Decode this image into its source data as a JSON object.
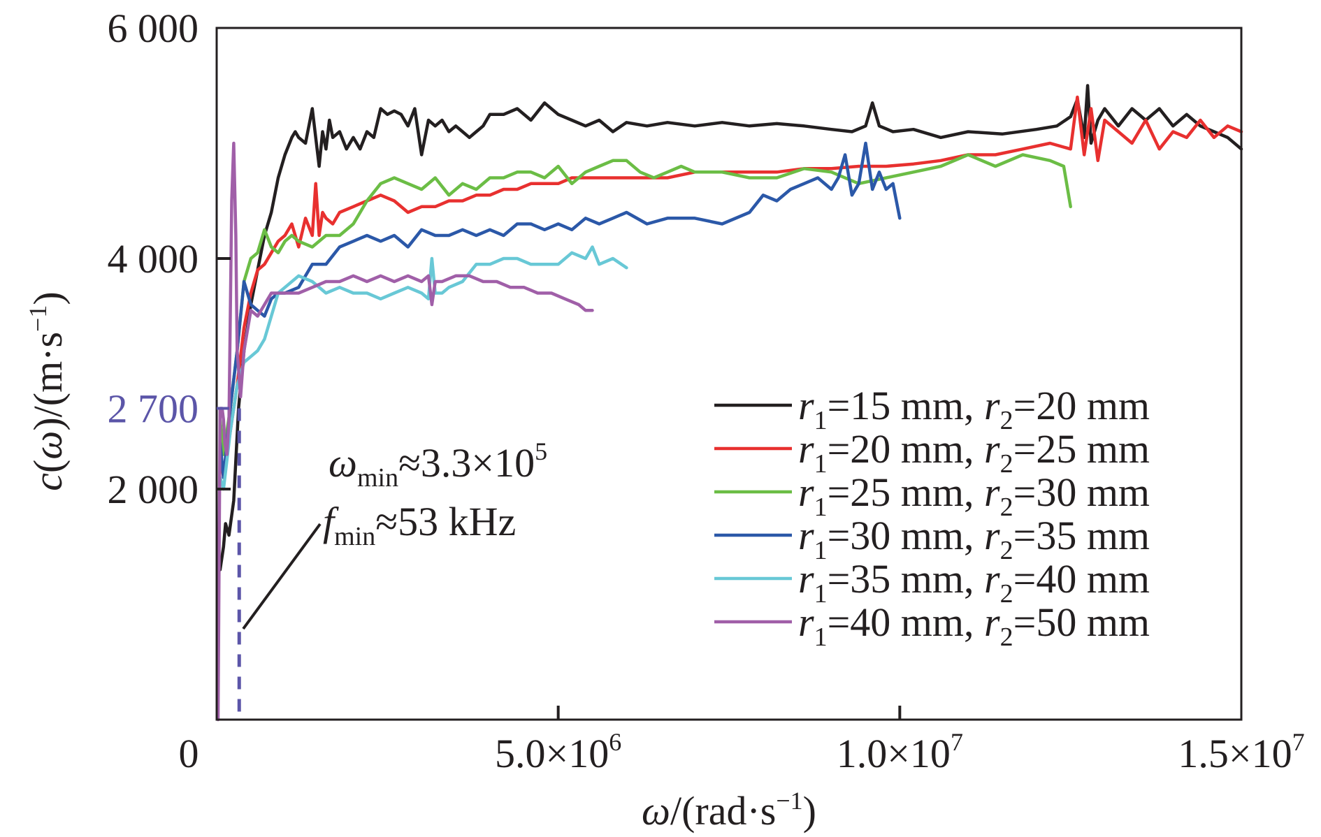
{
  "chart_data": {
    "type": "line",
    "title": "",
    "xlabel": "ω/(rad·s⁻¹)",
    "xlabel_parts": {
      "var": "ω",
      "unit": "/(rad·s",
      "sup": "−1",
      "close": ")"
    },
    "ylabel": "c(ω)/(m·s⁻¹)",
    "ylabel_parts": {
      "func": "c",
      "open": "(",
      "var": "ω",
      "unit": ")/(m·s",
      "sup": "−1",
      "close": ")"
    },
    "xlim": [
      0,
      15000000
    ],
    "ylim": [
      0,
      6000
    ],
    "grid": false,
    "legend_position": "center-right",
    "x_ticks": [
      {
        "value": 0,
        "label": "0"
      },
      {
        "value": 5000000,
        "label_mant": "5.0×10",
        "label_exp": "6"
      },
      {
        "value": 10000000,
        "label_mant": "1.0×10",
        "label_exp": "7"
      },
      {
        "value": 15000000,
        "label_mant": "1.5×10",
        "label_exp": "7"
      }
    ],
    "y_ticks": [
      {
        "value": 2000,
        "label": "2 000"
      },
      {
        "value": 4000,
        "label": "4 000"
      },
      {
        "value": 6000,
        "label": "6 000"
      }
    ],
    "highlight_tick": {
      "value": 2700,
      "label": "2 700",
      "color": "#5b55a8"
    },
    "vline": {
      "x": 330000,
      "color": "#5b55a8",
      "style": "dashed"
    },
    "annotations": {
      "omega": {
        "sym": "ω",
        "sub": "min",
        "text": "≈3.3×10",
        "sup": "5"
      },
      "freq": {
        "sym": "f",
        "sub": "min",
        "text": "≈53 kHz"
      }
    },
    "series": [
      {
        "name": "r1=15 mm, r2=20 mm",
        "label": {
          "a": "r",
          "a_sub": "1",
          "a_val": "=15 mm, ",
          "b": "r",
          "b_sub": "2",
          "b_val": "=20 mm"
        },
        "color": "#231f20",
        "x_unit": 1000000,
        "x": [
          0.05,
          0.1,
          0.13,
          0.18,
          0.25,
          0.32,
          0.4,
          0.5,
          0.6,
          0.7,
          0.8,
          0.9,
          1.0,
          1.1,
          1.15,
          1.2,
          1.3,
          1.4,
          1.5,
          1.55,
          1.6,
          1.65,
          1.7,
          1.8,
          1.9,
          2.0,
          2.1,
          2.2,
          2.3,
          2.4,
          2.5,
          2.6,
          2.7,
          2.8,
          2.9,
          3.0,
          3.1,
          3.2,
          3.3,
          3.4,
          3.5,
          3.6,
          3.7,
          3.8,
          3.9,
          4.0,
          4.2,
          4.4,
          4.6,
          4.8,
          5.0,
          5.2,
          5.4,
          5.6,
          5.8,
          6.0,
          6.3,
          6.6,
          7.0,
          7.4,
          7.8,
          8.2,
          8.6,
          9.0,
          9.3,
          9.5,
          9.6,
          9.7,
          9.9,
          10.2,
          10.6,
          11.0,
          11.5,
          12.0,
          12.3,
          12.5,
          12.6,
          12.7,
          12.75,
          12.8,
          12.9,
          13.0,
          13.2,
          13.4,
          13.6,
          13.8,
          14.0,
          14.2,
          14.4,
          14.6,
          14.8,
          15.0
        ],
        "y": [
          1300,
          1500,
          1700,
          1600,
          1900,
          2700,
          3200,
          3600,
          3900,
          4200,
          4400,
          4700,
          4900,
          5050,
          5100,
          5050,
          5000,
          5300,
          4800,
          5100,
          4950,
          5200,
          5050,
          5100,
          4950,
          5050,
          4950,
          5100,
          5050,
          5300,
          5250,
          5280,
          5250,
          5150,
          5300,
          4900,
          5200,
          5150,
          5200,
          5100,
          5150,
          5100,
          5050,
          5100,
          5150,
          5250,
          5250,
          5300,
          5200,
          5350,
          5250,
          5200,
          5150,
          5200,
          5100,
          5180,
          5150,
          5180,
          5150,
          5180,
          5150,
          5170,
          5150,
          5120,
          5100,
          5150,
          5350,
          5150,
          5100,
          5120,
          5050,
          5100,
          5080,
          5120,
          5150,
          5230,
          5380,
          5050,
          5500,
          5000,
          5200,
          5300,
          5150,
          5300,
          5200,
          5300,
          5150,
          5250,
          5150,
          5100,
          5050,
          4950
        ]
      },
      {
        "name": "r1=20 mm, r2=25 mm",
        "label": {
          "a": "r",
          "a_sub": "1",
          "a_val": "=20 mm, ",
          "b": "r",
          "b_sub": "2",
          "b_val": "=25 mm"
        },
        "color": "#e8302f",
        "x_unit": 1000000,
        "x": [
          0.05,
          0.1,
          0.2,
          0.3,
          0.4,
          0.5,
          0.6,
          0.7,
          0.8,
          0.9,
          1.0,
          1.1,
          1.2,
          1.3,
          1.4,
          1.45,
          1.5,
          1.55,
          1.6,
          1.7,
          1.8,
          2.0,
          2.2,
          2.4,
          2.6,
          2.8,
          3.0,
          3.2,
          3.4,
          3.6,
          3.8,
          4.0,
          4.2,
          4.4,
          4.6,
          4.8,
          5.0,
          5.2,
          5.4,
          5.6,
          5.8,
          6.0,
          6.3,
          6.6,
          7.0,
          7.4,
          7.8,
          8.2,
          8.6,
          9.0,
          9.4,
          9.8,
          10.2,
          10.6,
          11.0,
          11.4,
          11.8,
          12.2,
          12.5,
          12.6,
          12.7,
          12.8,
          12.9,
          13.0,
          13.2,
          13.4,
          13.6,
          13.8,
          14.0,
          14.2,
          14.4,
          14.6,
          14.8,
          15.0
        ],
        "y": [
          2300,
          2100,
          2500,
          2900,
          3400,
          3700,
          3900,
          3950,
          4050,
          4150,
          4200,
          4300,
          4100,
          4350,
          4200,
          4650,
          4200,
          4400,
          4350,
          4300,
          4400,
          4450,
          4500,
          4550,
          4500,
          4400,
          4450,
          4450,
          4500,
          4500,
          4550,
          4550,
          4600,
          4600,
          4650,
          4650,
          4650,
          4700,
          4700,
          4700,
          4700,
          4700,
          4700,
          4700,
          4750,
          4750,
          4750,
          4750,
          4780,
          4780,
          4800,
          4800,
          4820,
          4850,
          4900,
          4900,
          4950,
          5000,
          4950,
          5400,
          4900,
          5300,
          4850,
          5200,
          5100,
          5000,
          5200,
          4950,
          5100,
          5050,
          5200,
          5050,
          5150,
          5100
        ]
      },
      {
        "name": "r1=25 mm, r2=30 mm",
        "label": {
          "a": "r",
          "a_sub": "1",
          "a_val": "=25 mm, ",
          "b": "r",
          "b_sub": "2",
          "b_val": "=30 mm"
        },
        "color": "#6bbd45",
        "x_unit": 1000000,
        "x": [
          0.05,
          0.1,
          0.2,
          0.3,
          0.4,
          0.5,
          0.6,
          0.7,
          0.8,
          0.9,
          1.0,
          1.1,
          1.2,
          1.4,
          1.6,
          1.8,
          2.0,
          2.2,
          2.4,
          2.6,
          2.8,
          3.0,
          3.2,
          3.4,
          3.6,
          3.8,
          4.0,
          4.2,
          4.4,
          4.6,
          4.8,
          5.0,
          5.2,
          5.4,
          5.6,
          5.8,
          6.0,
          6.2,
          6.4,
          6.6,
          6.8,
          7.0,
          7.4,
          7.8,
          8.2,
          8.6,
          9.0,
          9.4,
          9.8,
          10.2,
          10.6,
          11.0,
          11.4,
          11.8,
          12.2,
          12.4,
          12.5
        ],
        "y": [
          2600,
          2300,
          2700,
          3200,
          3800,
          4000,
          4050,
          4250,
          4100,
          4050,
          4150,
          4200,
          4150,
          4100,
          4200,
          4200,
          4300,
          4500,
          4650,
          4700,
          4650,
          4600,
          4700,
          4550,
          4650,
          4600,
          4700,
          4700,
          4750,
          4750,
          4700,
          4800,
          4650,
          4750,
          4800,
          4850,
          4850,
          4750,
          4700,
          4750,
          4800,
          4750,
          4750,
          4700,
          4700,
          4780,
          4750,
          4650,
          4700,
          4750,
          4800,
          4900,
          4800,
          4900,
          4850,
          4800,
          4450
        ]
      },
      {
        "name": "r1=30 mm, r2=35 mm",
        "label": {
          "a": "r",
          "a_sub": "1",
          "a_val": "=30 mm, ",
          "b": "r",
          "b_sub": "2",
          "b_val": "=35 mm"
        },
        "color": "#2b58a8",
        "x_unit": 1000000,
        "x": [
          0.05,
          0.1,
          0.2,
          0.3,
          0.4,
          0.5,
          0.6,
          0.7,
          0.8,
          0.9,
          1.0,
          1.2,
          1.4,
          1.6,
          1.8,
          2.0,
          2.2,
          2.4,
          2.6,
          2.8,
          3.0,
          3.2,
          3.4,
          3.6,
          3.8,
          4.0,
          4.2,
          4.4,
          4.6,
          4.8,
          5.0,
          5.2,
          5.4,
          5.6,
          5.8,
          6.0,
          6.3,
          6.6,
          7.0,
          7.4,
          7.8,
          8.0,
          8.2,
          8.4,
          8.6,
          8.8,
          9.0,
          9.1,
          9.2,
          9.3,
          9.4,
          9.5,
          9.6,
          9.7,
          9.8,
          9.9,
          10.0
        ],
        "y": [
          2400,
          2100,
          2700,
          3200,
          3800,
          3600,
          3550,
          3500,
          3650,
          3700,
          3700,
          3750,
          3950,
          3950,
          4100,
          4150,
          4200,
          4150,
          4200,
          4100,
          4250,
          4200,
          4200,
          4250,
          4200,
          4250,
          4200,
          4300,
          4300,
          4250,
          4300,
          4250,
          4350,
          4300,
          4350,
          4400,
          4300,
          4350,
          4350,
          4300,
          4400,
          4550,
          4500,
          4600,
          4650,
          4700,
          4600,
          4700,
          4900,
          4550,
          4650,
          5000,
          4600,
          4750,
          4600,
          4650,
          4350
        ]
      },
      {
        "name": "r1=35 mm, r2=40 mm",
        "label": {
          "a": "r",
          "a_sub": "1",
          "a_val": "=35 mm, ",
          "b": "r",
          "b_sub": "2",
          "b_val": "=40 mm"
        },
        "color": "#68c8d6",
        "x_unit": 1000000,
        "x": [
          0.05,
          0.1,
          0.2,
          0.3,
          0.4,
          0.5,
          0.6,
          0.7,
          0.8,
          0.9,
          1.0,
          1.2,
          1.4,
          1.6,
          1.8,
          2.0,
          2.2,
          2.4,
          2.6,
          2.8,
          3.0,
          3.1,
          3.15,
          3.2,
          3.3,
          3.4,
          3.6,
          3.8,
          4.0,
          4.2,
          4.4,
          4.6,
          4.8,
          5.0,
          5.2,
          5.4,
          5.5,
          5.6,
          5.8,
          6.0
        ],
        "y": [
          2100,
          2000,
          2500,
          2900,
          3100,
          3150,
          3200,
          3300,
          3500,
          3700,
          3750,
          3850,
          3800,
          3700,
          3750,
          3700,
          3700,
          3650,
          3700,
          3750,
          3700,
          3650,
          4000,
          3700,
          3700,
          3750,
          3800,
          3950,
          3950,
          4000,
          4000,
          3950,
          3950,
          3950,
          4050,
          4000,
          4100,
          3950,
          4000,
          3920
        ]
      },
      {
        "name": "r1=40 mm, r2=50 mm",
        "label": {
          "a": "r",
          "a_sub": "1",
          "a_val": "=40 mm, ",
          "b": "r",
          "b_sub": "2",
          "b_val": "=50 mm"
        },
        "color": "#a05fa8",
        "x_unit": 1000000,
        "x": [
          0.02,
          0.05,
          0.08,
          0.1,
          0.12,
          0.15,
          0.18,
          0.2,
          0.22,
          0.25,
          0.28,
          0.3,
          0.35,
          0.4,
          0.5,
          0.6,
          0.7,
          0.8,
          1.0,
          1.2,
          1.4,
          1.6,
          1.8,
          2.0,
          2.2,
          2.4,
          2.6,
          2.8,
          3.0,
          3.1,
          3.15,
          3.2,
          3.3,
          3.5,
          3.7,
          3.9,
          4.1,
          4.3,
          4.5,
          4.7,
          4.9,
          5.1,
          5.3,
          5.4,
          5.5
        ],
        "y": [
          0,
          2700,
          2700,
          2600,
          2400,
          2300,
          2600,
          3500,
          4500,
          5000,
          4200,
          3200,
          2800,
          3200,
          3550,
          3500,
          3600,
          3700,
          3700,
          3700,
          3750,
          3800,
          3800,
          3850,
          3800,
          3850,
          3800,
          3850,
          3800,
          3850,
          3600,
          3800,
          3800,
          3850,
          3850,
          3800,
          3800,
          3750,
          3750,
          3700,
          3700,
          3650,
          3600,
          3550,
          3550
        ]
      }
    ]
  }
}
